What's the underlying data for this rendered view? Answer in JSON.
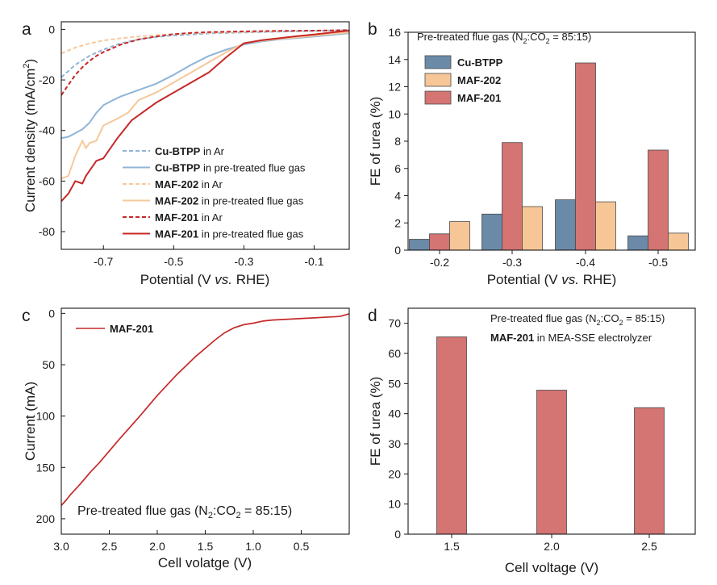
{
  "chart_data": [
    {
      "panel": "a",
      "type": "line",
      "xlabel": "Potential (V vs. RHE)",
      "ylabel": "Current density (mA/cm2)",
      "xlim": [
        -0.82,
        0.0
      ],
      "ylim": [
        -87,
        3
      ],
      "x_reversed": false,
      "xticks": [
        -0.7,
        -0.5,
        -0.3,
        -0.1
      ],
      "xtick_labels": [
        "-0.7",
        "-0.5",
        "-0.3",
        "-0.1"
      ],
      "yticks": [
        0,
        -20,
        -40,
        -60,
        -80
      ],
      "ytick_labels": [
        "0",
        "-20",
        "-40",
        "-60",
        "-80"
      ],
      "series": [
        {
          "key": "cu_ar",
          "name": "Cu-BTPP",
          "suffix": " in Ar",
          "color": "#8fb4d8",
          "dash": true,
          "x": [
            -0.82,
            -0.78,
            -0.74,
            -0.7,
            -0.65,
            -0.6,
            -0.55,
            -0.5,
            -0.45,
            -0.4,
            -0.3,
            -0.2,
            -0.1,
            0.0
          ],
          "y": [
            -19,
            -14,
            -10.5,
            -8,
            -5.5,
            -4,
            -3,
            -2.4,
            -2,
            -1.6,
            -1.2,
            -0.9,
            -0.6,
            -0.3
          ]
        },
        {
          "key": "cu_flue",
          "name": "Cu-BTPP",
          "suffix": " in pre-treated flue gas",
          "color": "#8fb4d8",
          "dash": false,
          "x": [
            -0.82,
            -0.8,
            -0.76,
            -0.74,
            -0.72,
            -0.7,
            -0.68,
            -0.65,
            -0.6,
            -0.55,
            -0.5,
            -0.45,
            -0.4,
            -0.35,
            -0.3,
            -0.25,
            -0.2,
            -0.15,
            -0.1,
            -0.05,
            0.0
          ],
          "y": [
            -43,
            -42.5,
            -39.5,
            -37,
            -33,
            -30,
            -28.5,
            -26.5,
            -24,
            -21.5,
            -18,
            -14,
            -10.5,
            -8,
            -6,
            -4.8,
            -4,
            -3.4,
            -2.8,
            -2.2,
            -1.5
          ]
        },
        {
          "key": "maf202_ar",
          "name": "MAF-202",
          "suffix": " in Ar",
          "color": "#f6c89a",
          "dash": true,
          "x": [
            -0.82,
            -0.78,
            -0.74,
            -0.7,
            -0.65,
            -0.6,
            -0.55,
            -0.5,
            -0.45,
            -0.4,
            -0.3,
            -0.2,
            -0.1,
            0.0
          ],
          "y": [
            -9.5,
            -7.2,
            -5.6,
            -4.4,
            -3.5,
            -2.8,
            -2.3,
            -1.9,
            -1.6,
            -1.4,
            -1.1,
            -0.8,
            -0.5,
            -0.3
          ]
        },
        {
          "key": "maf202_flue",
          "name": "MAF-202",
          "suffix": " in pre-treated flue gas",
          "color": "#f6c89a",
          "dash": false,
          "x": [
            -0.82,
            -0.8,
            -0.78,
            -0.77,
            -0.76,
            -0.75,
            -0.74,
            -0.72,
            -0.7,
            -0.67,
            -0.63,
            -0.6,
            -0.55,
            -0.5,
            -0.45,
            -0.4,
            -0.35,
            -0.3,
            -0.25,
            -0.2,
            -0.15,
            -0.1,
            -0.05,
            0.0
          ],
          "y": [
            -59,
            -58,
            -50,
            -47,
            -44,
            -47,
            -45,
            -44,
            -38,
            -36,
            -33,
            -28,
            -25,
            -21,
            -17,
            -13,
            -9,
            -5.5,
            -4.5,
            -3.8,
            -3.2,
            -2.5,
            -1.8,
            -1.2
          ]
        },
        {
          "key": "maf201_ar",
          "name": "MAF-201",
          "suffix": " in Ar",
          "color": "#c62828",
          "dash": true,
          "x": [
            -0.82,
            -0.8,
            -0.78,
            -0.76,
            -0.74,
            -0.72,
            -0.7,
            -0.65,
            -0.6,
            -0.55,
            -0.5,
            -0.45,
            -0.4,
            -0.3,
            -0.2,
            -0.1,
            -0.05,
            0.0
          ],
          "y": [
            -26,
            -22,
            -18,
            -15,
            -12.5,
            -10.5,
            -9,
            -6,
            -4,
            -2.8,
            -1.9,
            -1.4,
            -1.1,
            -0.8,
            -0.6,
            -0.5,
            -0.4,
            -0.3
          ]
        },
        {
          "key": "maf201_flue",
          "name": "MAF-201",
          "suffix": " in pre-treated flue gas",
          "color": "#c62828",
          "dash": false,
          "x": [
            -0.82,
            -0.8,
            -0.78,
            -0.76,
            -0.75,
            -0.74,
            -0.72,
            -0.7,
            -0.66,
            -0.62,
            -0.6,
            -0.55,
            -0.5,
            -0.45,
            -0.4,
            -0.35,
            -0.3,
            -0.25,
            -0.2,
            -0.15,
            -0.1,
            -0.05,
            0.0
          ],
          "y": [
            -68,
            -65,
            -60,
            -61,
            -58,
            -56,
            -52,
            -51,
            -43,
            -36,
            -34,
            -29,
            -25,
            -21,
            -17,
            -11,
            -5.5,
            -4.3,
            -3.5,
            -2.7,
            -2,
            -1.2,
            -0.5
          ]
        }
      ]
    },
    {
      "panel": "b",
      "type": "bar",
      "title": "Pre-treated flue gas (N2:CO2 = 85:15)",
      "xlabel": "Potential (V vs. RHE)",
      "ylabel": "FE of urea (%)",
      "ylim": [
        0,
        16
      ],
      "yticks": [
        0,
        2,
        4,
        6,
        8,
        10,
        12,
        14,
        16
      ],
      "ytick_labels": [
        "0",
        "2",
        "4",
        "6",
        "8",
        "10",
        "12",
        "14",
        "16"
      ],
      "categories": [
        "-0.2",
        "-0.3",
        "-0.4",
        "-0.5"
      ],
      "series": [
        {
          "name": "Cu-BTPP",
          "color": "#6b8aa8",
          "values": [
            0.8,
            2.65,
            3.7,
            1.05
          ]
        },
        {
          "name": "MAF-201",
          "color": "#d47473",
          "values": [
            1.2,
            7.9,
            13.75,
            7.35
          ]
        },
        {
          "name": "MAF-202",
          "color": "#f6c696",
          "values": [
            2.1,
            3.2,
            3.55,
            1.25
          ]
        }
      ],
      "legend_order": [
        "Cu-BTPP",
        "MAF-202",
        "MAF-201"
      ]
    },
    {
      "panel": "c",
      "type": "line",
      "xlabel": "Cell volatge (V)",
      "ylabel": "Current (mA)",
      "xlim": [
        3.0,
        0.0
      ],
      "ylim": [
        215,
        -5
      ],
      "xticks": [
        3.0,
        2.5,
        2.0,
        1.5,
        1.0,
        0.5
      ],
      "xtick_labels": [
        "3.0",
        "2.5",
        "2.0",
        "1.5",
        "1.0",
        "0.5"
      ],
      "yticks": [
        0,
        50,
        100,
        150,
        200
      ],
      "ytick_labels": [
        "0",
        "50",
        "100",
        "150",
        "200"
      ],
      "annotation": "Pre-treated flue gas (N2:CO2 = 85:15)",
      "series": [
        {
          "name": "MAF-201",
          "color": "#c62828",
          "x": [
            3.0,
            2.95,
            2.9,
            2.8,
            2.7,
            2.6,
            2.5,
            2.4,
            2.2,
            2.0,
            1.8,
            1.6,
            1.4,
            1.3,
            1.2,
            1.1,
            1.0,
            0.9,
            0.8,
            0.6,
            0.4,
            0.2,
            0.1,
            0.0
          ],
          "y": [
            187,
            182,
            176,
            166,
            155,
            145,
            134,
            123,
            102,
            80,
            60,
            42,
            26,
            19,
            14,
            11,
            9.5,
            7.5,
            6.5,
            5.5,
            4.5,
            3.5,
            3,
            0.5
          ]
        }
      ]
    },
    {
      "panel": "d",
      "type": "bar",
      "title": "Pre-treated flue gas (N2:CO2 = 85:15)",
      "subtitle_bold": "MAF-201",
      "subtitle_rest": " in MEA-SSE electrolyzer",
      "xlabel": "Cell voltage (V)",
      "ylabel": "FE of urea (%)",
      "ylim": [
        0,
        75
      ],
      "yticks": [
        0,
        10,
        20,
        30,
        40,
        50,
        60,
        70
      ],
      "ytick_labels": [
        "0",
        "10",
        "20",
        "30",
        "40",
        "50",
        "60",
        "70"
      ],
      "categories": [
        "1.5",
        "2.0",
        "2.5"
      ],
      "series": [
        {
          "name": "MAF-201",
          "color": "#d47473",
          "values": [
            65.5,
            47.8,
            42.0
          ]
        }
      ]
    }
  ],
  "labels": {
    "panel_a": "a",
    "panel_b": "b",
    "panel_c": "c",
    "panel_d": "d",
    "gas_prefix": "Pre-treated flue gas (N",
    "gas_mid": ":CO",
    "gas_suffix": " = 85:15)",
    "sub_2": "2",
    "pot_prefix": "Potential (V ",
    "pot_vs": "vs.",
    "pot_suffix": " RHE)",
    "cd_prefix": "Current density (mA/cm",
    "cd_sup": "2",
    "cd_suffix": ")"
  }
}
